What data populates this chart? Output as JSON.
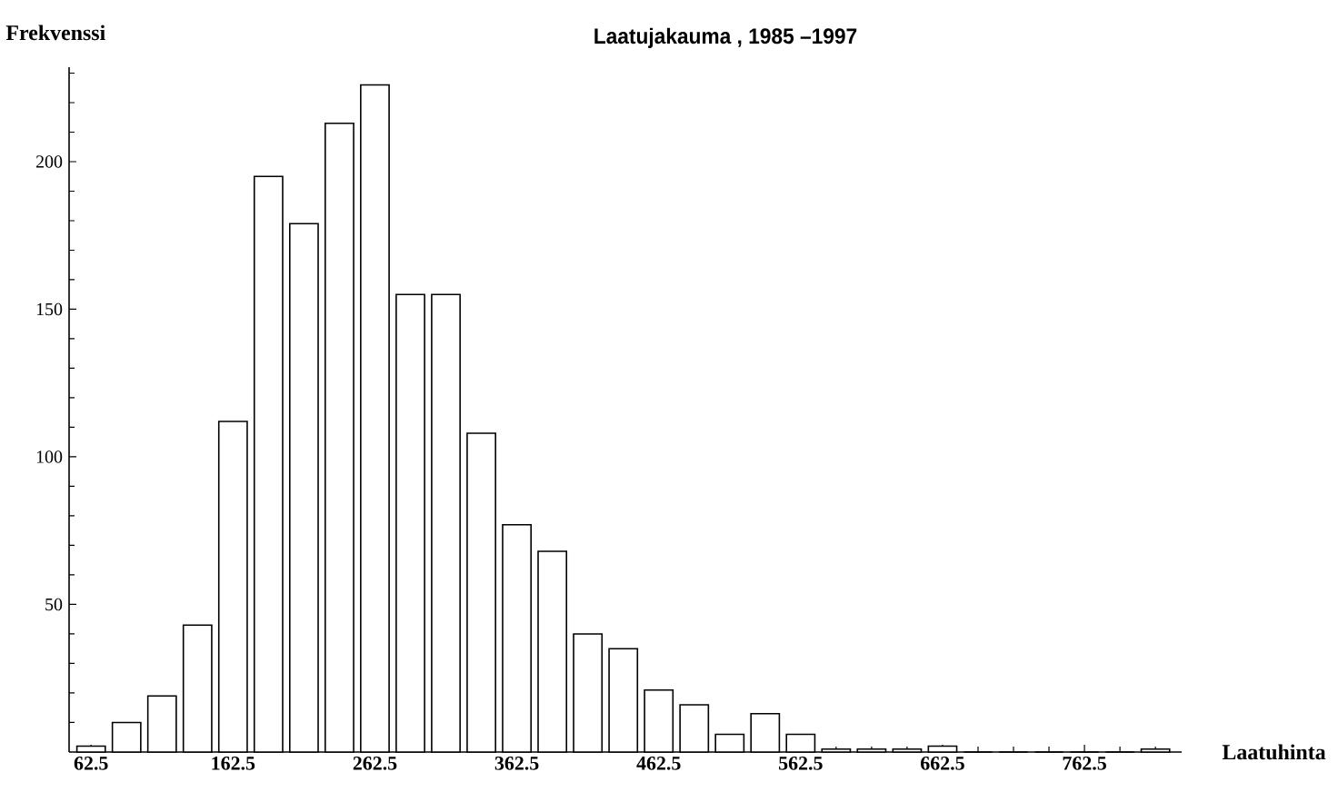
{
  "chart_data": {
    "type": "bar",
    "title": "Laatujakauma , 1985 –1997",
    "xlabel": "Laatuhinta",
    "ylabel": "Frekvenssi",
    "x": [
      62.5,
      87.5,
      112.5,
      137.5,
      162.5,
      187.5,
      212.5,
      237.5,
      262.5,
      287.5,
      312.5,
      337.5,
      362.5,
      387.5,
      412.5,
      437.5,
      462.5,
      487.5,
      512.5,
      537.5,
      562.5,
      587.5,
      612.5,
      637.5,
      662.5,
      687.5,
      712.5,
      737.5,
      762.5,
      787.5,
      812.5
    ],
    "values": [
      2,
      10,
      19,
      43,
      112,
      195,
      179,
      213,
      226,
      155,
      155,
      108,
      77,
      68,
      40,
      35,
      21,
      16,
      6,
      13,
      6,
      1,
      1,
      1,
      2,
      0,
      0,
      0,
      0,
      0,
      1
    ],
    "color": "#ffffff",
    "xlim": [
      47,
      831
    ],
    "ylim": [
      0,
      232
    ],
    "xticks": [
      62.5,
      {
        "value": 87.5,
        "label": null
      },
      {
        "value": 112.5,
        "label": null
      },
      {
        "value": 137.5,
        "label": null
      },
      162.5,
      {
        "value": 187.5,
        "label": null
      },
      {
        "value": 212.5,
        "label": null
      },
      {
        "value": 237.5,
        "label": null
      },
      262.5,
      {
        "value": 287.5,
        "label": null
      },
      {
        "value": 312.5,
        "label": null
      },
      {
        "value": 337.5,
        "label": null
      },
      362.5,
      {
        "value": 387.5,
        "label": null
      },
      {
        "value": 412.5,
        "label": null
      },
      {
        "value": 437.5,
        "label": null
      },
      462.5,
      {
        "value": 487.5,
        "label": null
      },
      {
        "value": 512.5,
        "label": null
      },
      {
        "value": 537.5,
        "label": null
      },
      562.5,
      {
        "value": 587.5,
        "label": null
      },
      {
        "value": 612.5,
        "label": null
      },
      {
        "value": 637.5,
        "label": null
      },
      662.5,
      {
        "value": 687.5,
        "label": null
      },
      {
        "value": 712.5,
        "label": null
      },
      {
        "value": 737.5,
        "label": null
      },
      762.5,
      {
        "value": 787.5,
        "label": null
      },
      {
        "value": 812.5,
        "label": null
      }
    ],
    "yticks": [
      {
        "value": 10,
        "label": null
      },
      {
        "value": 20,
        "label": null
      },
      {
        "value": 30,
        "label": null
      },
      {
        "value": 40,
        "label": null
      },
      50,
      {
        "value": 60,
        "label": null
      },
      {
        "value": 70,
        "label": null
      },
      {
        "value": 80,
        "label": null
      },
      {
        "value": 90,
        "label": null
      },
      100,
      {
        "value": 110,
        "label": null
      },
      {
        "value": 120,
        "label": null
      },
      {
        "value": 130,
        "label": null
      },
      {
        "value": 140,
        "label": null
      },
      150,
      {
        "value": 160,
        "label": null
      },
      {
        "value": 170,
        "label": null
      },
      {
        "value": 180,
        "label": null
      },
      {
        "value": 190,
        "label": null
      },
      200,
      {
        "value": 210,
        "label": null
      },
      {
        "value": 220,
        "label": null
      },
      {
        "value": 230,
        "label": null
      }
    ],
    "grid": false
  }
}
